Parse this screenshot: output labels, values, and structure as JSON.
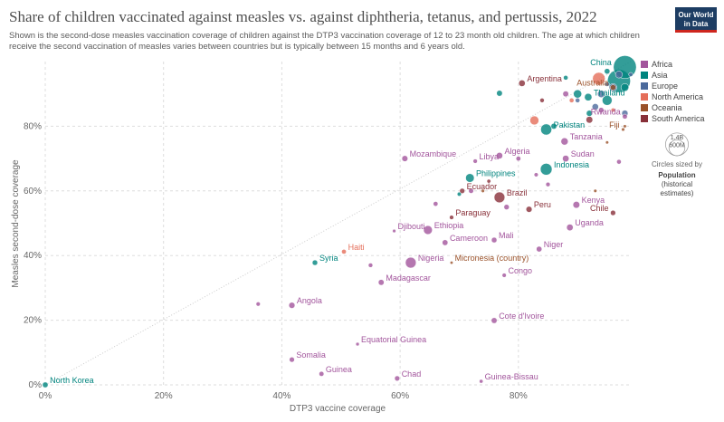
{
  "chart_data": {
    "type": "scatter",
    "title": "Share of children vaccinated against measles vs. against diphtheria, tetanus, and pertussis, 2022",
    "subtitle": [
      "Shown is the second-dose measles vaccination coverage of children against the DTP3 vaccination coverage of 12 to 23 month old children. The age at which children",
      "receive the second vaccination of measles varies between countries but is typically between 15 months and 6 years old."
    ],
    "logo": [
      "Our World",
      "in Data"
    ],
    "x_label": "DTP3 vaccine coverage",
    "y_label": "Measles second-dose coverage",
    "xlim": [
      0,
      99
    ],
    "ylim": [
      0,
      100
    ],
    "xticks": [
      {
        "value": 0,
        "label": "0%"
      },
      {
        "value": 20,
        "label": "20%"
      },
      {
        "value": 40,
        "label": "40%"
      },
      {
        "value": 60,
        "label": "60%"
      },
      {
        "value": 80,
        "label": "80%"
      }
    ],
    "yticks": [
      {
        "value": 0,
        "label": "0%"
      },
      {
        "value": 20,
        "label": "20%"
      },
      {
        "value": 40,
        "label": "40%"
      },
      {
        "value": 60,
        "label": "60%"
      },
      {
        "value": 80,
        "label": "80%"
      }
    ],
    "grid": true,
    "size_legend": {
      "title": [
        "Circles sized by"
      ],
      "variable": [
        "Population",
        "(historical",
        "estimates)"
      ],
      "sizes": [
        {
          "value": 1400,
          "label": "1.4B"
        },
        {
          "value": 600,
          "label": "600M"
        }
      ]
    },
    "series": [
      {
        "name": "Africa",
        "color": "#a2559c",
        "points": [
          {
            "label": "Rwanda",
            "x": 98,
            "y": 83,
            "size": 14
          },
          {
            "label": "Tanzania",
            "x": 87.8,
            "y": 75.3,
            "size": 65
          },
          {
            "label": "Sudan",
            "x": 88,
            "y": 70,
            "size": 47
          },
          {
            "label": "Libya",
            "x": 72.7,
            "y": 69.2,
            "size": 6.8
          },
          {
            "label": "Algeria",
            "x": 76.8,
            "y": 70.9,
            "size": 45
          },
          {
            "label": "Mozambique",
            "x": 60.8,
            "y": 70,
            "size": 33
          },
          {
            "label": "Kenya",
            "x": 89.8,
            "y": 55.7,
            "size": 54
          },
          {
            "label": "Uganda",
            "x": 88.7,
            "y": 48.7,
            "size": 47
          },
          {
            "label": "Djibouti",
            "x": 59,
            "y": 47.6,
            "size": 1.1
          },
          {
            "label": "Ethiopia",
            "x": 64.7,
            "y": 47.9,
            "size": 123
          },
          {
            "label": "Cameroon",
            "x": 67.6,
            "y": 44,
            "size": 28
          },
          {
            "label": "Mali",
            "x": 75.9,
            "y": 44.8,
            "size": 23
          },
          {
            "label": "Niger",
            "x": 83.5,
            "y": 42,
            "size": 26
          },
          {
            "label": "Nigeria",
            "x": 61.8,
            "y": 37.8,
            "size": 218
          },
          {
            "label": "Congo",
            "x": 77.6,
            "y": 33.9,
            "size": 6
          },
          {
            "label": "Madagascar",
            "x": 56.8,
            "y": 31.7,
            "size": 29
          },
          {
            "label": "Angola",
            "x": 41.7,
            "y": 24.6,
            "size": 36
          },
          {
            "label": "Cote d'Ivoire",
            "x": 75.9,
            "y": 19.9,
            "size": 28
          },
          {
            "label": "Equatorial Guinea",
            "x": 52.8,
            "y": 12.6,
            "size": 1.7
          },
          {
            "label": "Somalia",
            "x": 41.7,
            "y": 7.8,
            "size": 18
          },
          {
            "label": "Guinea",
            "x": 46.7,
            "y": 3.4,
            "size": 14
          },
          {
            "label": "Chad",
            "x": 59.5,
            "y": 2,
            "size": 18
          },
          {
            "label": "Guinea-Bissau",
            "x": 73.7,
            "y": 1.1,
            "size": 2.1
          },
          {
            "x": 88,
            "y": 90,
            "size": 30
          },
          {
            "x": 94,
            "y": 85,
            "size": 20
          },
          {
            "x": 80,
            "y": 70,
            "size": 12
          },
          {
            "x": 72,
            "y": 60,
            "size": 15
          },
          {
            "x": 78,
            "y": 55,
            "size": 20
          },
          {
            "x": 85,
            "y": 62,
            "size": 8
          },
          {
            "x": 66,
            "y": 56,
            "size": 12
          },
          {
            "x": 97,
            "y": 69,
            "size": 10
          },
          {
            "x": 83,
            "y": 65,
            "size": 5
          },
          {
            "x": 36,
            "y": 25,
            "size": 6
          },
          {
            "x": 55,
            "y": 37,
            "size": 8
          }
        ]
      },
      {
        "name": "Asia",
        "color": "#00847e",
        "points": [
          {
            "label": "China",
            "x": 98,
            "y": 98.3,
            "size": 1410
          },
          {
            "label": "Thailand",
            "x": 91.8,
            "y": 89,
            "size": 72
          },
          {
            "label": "Pakistan",
            "x": 84.7,
            "y": 79,
            "size": 235
          },
          {
            "label": "Indonesia",
            "x": 84.7,
            "y": 66.7,
            "size": 275
          },
          {
            "label": "Philippines",
            "x": 71.8,
            "y": 64,
            "size": 115
          },
          {
            "label": "Syria",
            "x": 45.6,
            "y": 37.8,
            "size": 22
          },
          {
            "label": "North Korea",
            "x": 0,
            "y": 0,
            "size": 26
          },
          {
            "x": 97,
            "y": 94,
            "size": 1420
          },
          {
            "x": 95,
            "y": 88,
            "size": 170
          },
          {
            "x": 90,
            "y": 90,
            "size": 100
          },
          {
            "x": 98,
            "y": 92,
            "size": 85
          },
          {
            "x": 86,
            "y": 80,
            "size": 30
          },
          {
            "x": 76.8,
            "y": 90.2,
            "size": 30
          },
          {
            "x": 92,
            "y": 84,
            "size": 35
          },
          {
            "x": 70,
            "y": 59,
            "size": 5
          },
          {
            "x": 95,
            "y": 97,
            "size": 25
          },
          {
            "x": 88,
            "y": 95,
            "size": 10
          }
        ]
      },
      {
        "name": "Europe",
        "color": "#4c6a9c",
        "points": [
          {
            "x": 96,
            "y": 92,
            "size": 84
          },
          {
            "x": 94,
            "y": 90,
            "size": 68
          },
          {
            "x": 97,
            "y": 96,
            "size": 60
          },
          {
            "x": 93,
            "y": 86,
            "size": 45
          },
          {
            "x": 98,
            "y": 84,
            "size": 40
          },
          {
            "x": 90,
            "y": 88,
            "size": 10
          },
          {
            "x": 95,
            "y": 93,
            "size": 9
          },
          {
            "x": 99,
            "y": 96,
            "size": 5
          }
        ]
      },
      {
        "name": "North America",
        "color": "#e56e5a",
        "points": [
          {
            "label": "Haiti",
            "x": 50.5,
            "y": 41.2,
            "size": 11.6
          },
          {
            "x": 93.6,
            "y": 94.7,
            "size": 333
          },
          {
            "x": 82.7,
            "y": 81.8,
            "size": 127
          },
          {
            "x": 89,
            "y": 88,
            "size": 10
          },
          {
            "x": 96,
            "y": 85,
            "size": 5
          }
        ]
      },
      {
        "name": "Oceania",
        "color": "#9a5129",
        "points": [
          {
            "label": "Australia",
            "x": 96,
            "y": 92,
            "size": 26
          },
          {
            "label": "Fiji",
            "x": 97.7,
            "y": 79,
            "size": 0.9
          },
          {
            "label": "Micronesia (country)",
            "x": 68.7,
            "y": 37.8,
            "size": 0.11
          },
          {
            "x": 95,
            "y": 75,
            "size": 0.3
          },
          {
            "x": 74,
            "y": 60,
            "size": 1
          },
          {
            "x": 98,
            "y": 80,
            "size": 0.5
          },
          {
            "x": 93,
            "y": 60,
            "size": 0.6
          }
        ]
      },
      {
        "name": "South America",
        "color": "#883039",
        "points": [
          {
            "label": "Argentina",
            "x": 80.6,
            "y": 93.3,
            "size": 46
          },
          {
            "label": "Ecuador",
            "x": 70.5,
            "y": 60,
            "size": 18
          },
          {
            "label": "Brazil",
            "x": 76.8,
            "y": 58,
            "size": 215
          },
          {
            "label": "Paraguay",
            "x": 68.7,
            "y": 51.8,
            "size": 6.8
          },
          {
            "label": "Peru",
            "x": 81.8,
            "y": 54.3,
            "size": 34
          },
          {
            "label": "Chile",
            "x": 96,
            "y": 53.2,
            "size": 19
          },
          {
            "x": 92,
            "y": 82,
            "size": 52
          },
          {
            "x": 84,
            "y": 88,
            "size": 8
          },
          {
            "x": 75,
            "y": 63,
            "size": 3
          }
        ]
      }
    ]
  }
}
